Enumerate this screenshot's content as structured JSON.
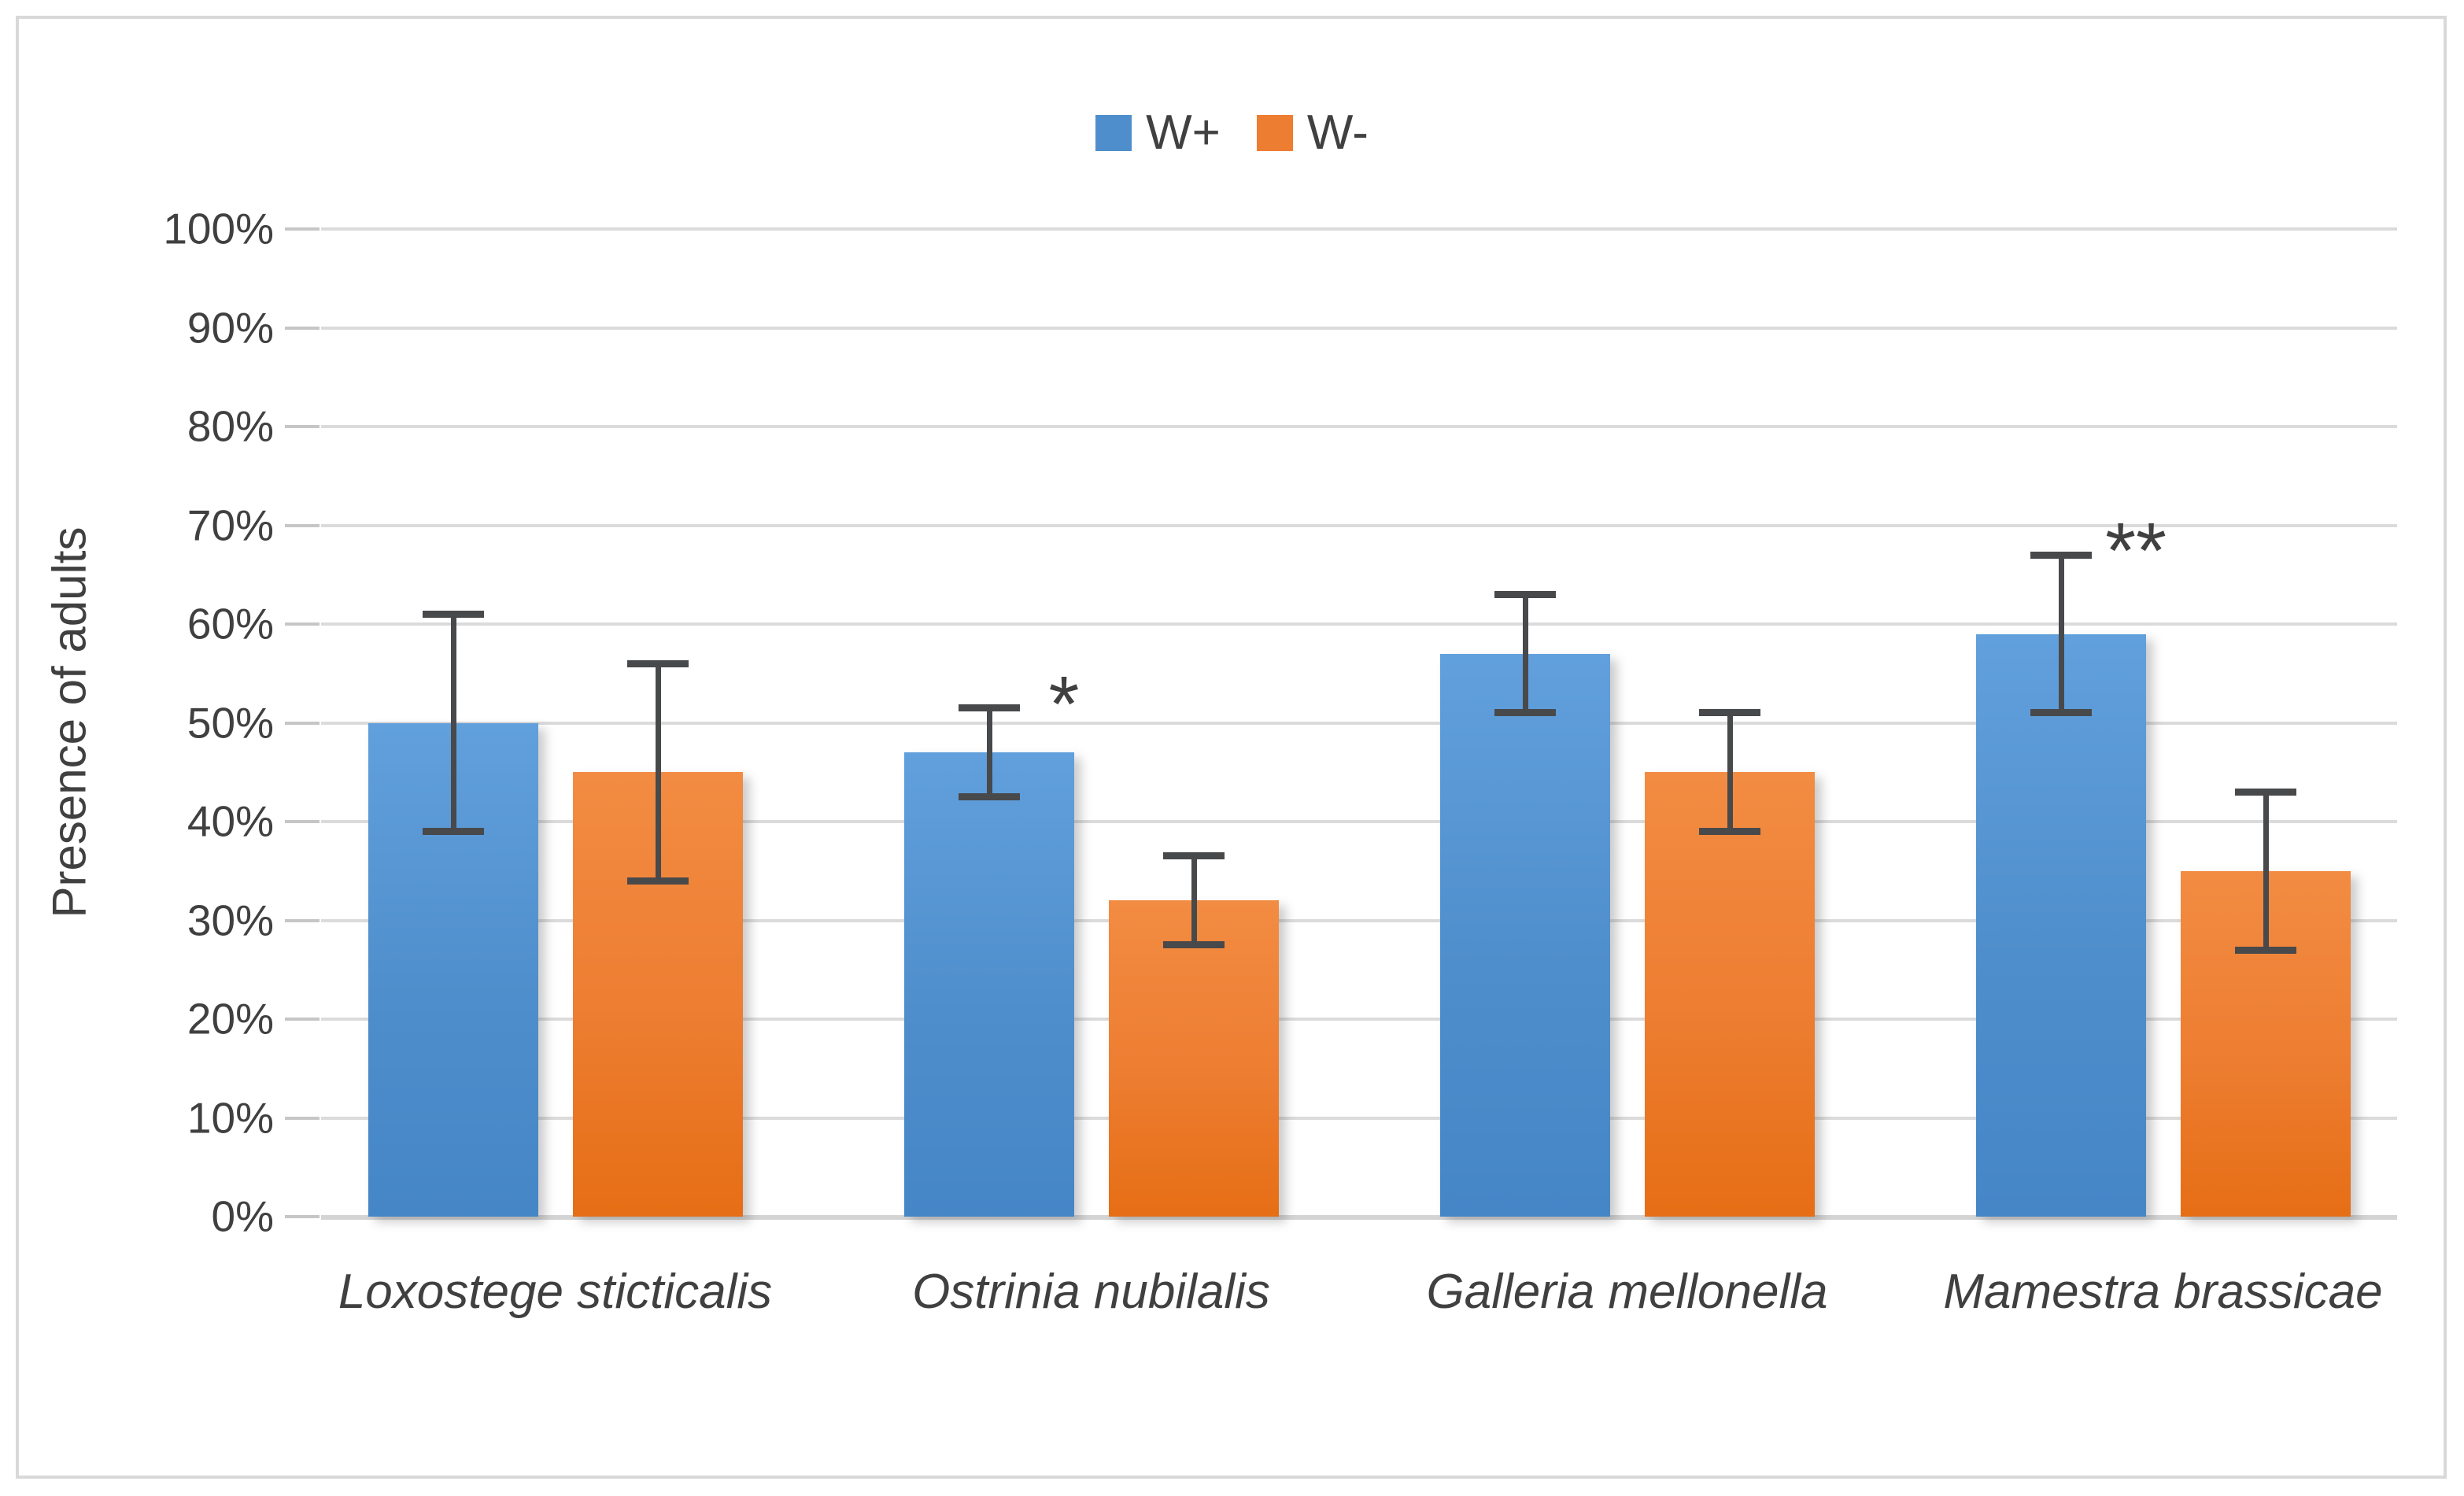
{
  "legend": {
    "series_0_label": "W+",
    "series_1_label": "W-"
  },
  "chart_data": {
    "type": "bar",
    "title": "",
    "xlabel": "",
    "ylabel": "Presence of adults",
    "ylim": [
      0,
      100
    ],
    "y_ticks": [
      "0%",
      "10%",
      "20%",
      "30%",
      "40%",
      "50%",
      "60%",
      "70%",
      "80%",
      "90%",
      "100%"
    ],
    "grid": true,
    "legend_position": "top-center",
    "categories": [
      "Loxostege sticticalis",
      "Ostrinia nubilalis",
      "Galleria mellonella",
      "Mamestra brassicae"
    ],
    "series": [
      {
        "name": "W+",
        "color": "#4F8ECC",
        "values": [
          50,
          47,
          57,
          59
        ],
        "error_low": [
          39,
          42.5,
          51,
          51
        ],
        "error_high": [
          61,
          51.5,
          63,
          67
        ]
      },
      {
        "name": "W-",
        "color": "#ED7D31",
        "values": [
          45,
          32,
          45,
          35
        ],
        "error_low": [
          34,
          27.5,
          39,
          27
        ],
        "error_high": [
          56,
          36.5,
          51,
          43
        ]
      }
    ],
    "annotations": [
      {
        "category": "Ostrinia nubilalis",
        "series": "W+",
        "text": "*"
      },
      {
        "category": "Mamestra brassicae",
        "series": "W+",
        "text": "**"
      }
    ],
    "error_bar_color": "#48494B",
    "gridline_color": "#DBDBDB",
    "text_color": "#404040"
  }
}
